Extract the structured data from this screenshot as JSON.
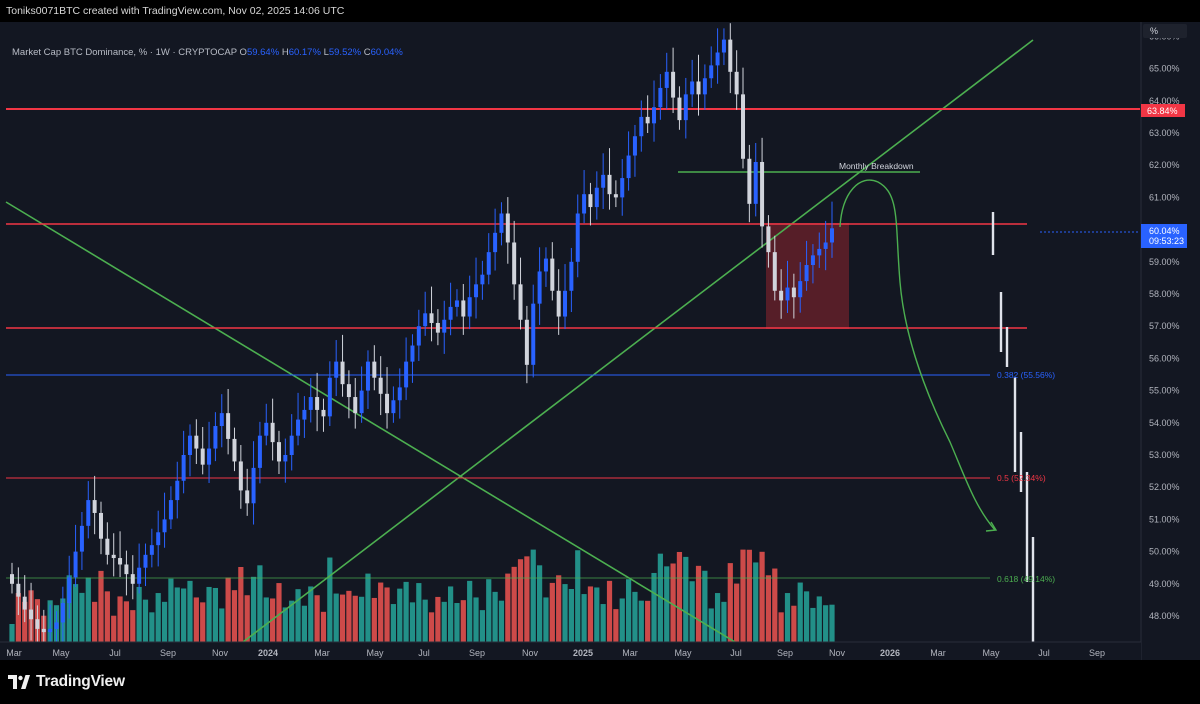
{
  "header": {
    "creator_line": "Toniks0071BTC created with TradingView.com, Nov 02, 2025 14:06 UTC"
  },
  "legend": {
    "title": "Market Cap BTC Dominance, % · 1W · CRYPTOCAP",
    "o_label": "O",
    "o_value": "59.64%",
    "h_label": "H",
    "h_value": "60.17%",
    "l_label": "L",
    "l_value": "59.52%",
    "c_label": "C",
    "c_value": "60.04%"
  },
  "price_scale": {
    "unit_button": "%",
    "ticks": [
      "48.00%",
      "49.00%",
      "50.00%",
      "51.00%",
      "52.00%",
      "53.00%",
      "54.00%",
      "55.00%",
      "56.00%",
      "57.00%",
      "58.00%",
      "59.00%",
      "60.00%",
      "61.00%",
      "62.00%",
      "63.00%",
      "64.00%",
      "65.00%",
      "66.00%"
    ],
    "price_tag": "63.84%",
    "last_price": "60.04%",
    "countdown": "09:53:23"
  },
  "time_axis": {
    "labels": [
      "Mar",
      "May",
      "Jul",
      "Sep",
      "Nov",
      "2024",
      "Mar",
      "May",
      "Jul",
      "Sep",
      "Nov",
      "2025",
      "Mar",
      "May",
      "Jul",
      "Sep",
      "Nov",
      "2026",
      "Mar",
      "May",
      "Jul",
      "Sep"
    ]
  },
  "annotations": {
    "monthly_breakdown": "Monthly Breakdown",
    "fib_0382": "0.382 (55.56%)",
    "fib_05": "0.5 (52.34%)",
    "fib_0618": "0.618 (49.14%)"
  },
  "brand": {
    "name": "TradingView"
  },
  "colors": {
    "background": "#131722",
    "bull": "#2962ff",
    "bear": "#d1d4dc",
    "vol_up": "#26a69a",
    "vol_down": "#ef5350",
    "trendline": "#4caf50",
    "resistance": "#f23645",
    "fib_0382": "#2962ff",
    "fib_05": "#f23645",
    "fib_0618": "#4caf50",
    "breakdown_zone": "#b22833"
  },
  "chart_data": {
    "type": "candlestick",
    "title": "Market Cap BTC Dominance, % · 1W · CRYPTOCAP",
    "ylabel": "%",
    "ylim": [
      47.2,
      66.3
    ],
    "x_start": "2023-03",
    "x_end": "2026-09",
    "horizontal_levels": [
      63.84,
      60.25,
      57.02
    ],
    "fib_levels": [
      {
        "level": "0.382",
        "value": 55.56
      },
      {
        "level": "0.5",
        "value": 52.34
      },
      {
        "level": "0.618",
        "value": 49.14
      }
    ],
    "monthly_breakdown_level": 61.93,
    "last_close": 60.04,
    "closes": [
      49.0,
      48.6,
      48.2,
      47.9,
      47.6,
      47.5,
      47.6,
      47.8,
      48.4,
      49.2,
      50.0,
      50.8,
      51.6,
      51.2,
      50.4,
      49.9,
      49.8,
      49.6,
      49.3,
      49.0,
      49.5,
      49.9,
      50.2,
      50.6,
      51.0,
      51.6,
      52.2,
      53.0,
      53.6,
      53.2,
      52.7,
      53.2,
      53.9,
      54.3,
      53.5,
      52.8,
      51.9,
      51.5,
      52.6,
      53.6,
      54.0,
      53.4,
      52.8,
      53.0,
      53.6,
      54.1,
      54.4,
      54.8,
      54.4,
      54.2,
      55.4,
      55.9,
      55.2,
      54.8,
      54.3,
      55.0,
      55.9,
      55.4,
      54.9,
      54.3,
      54.7,
      55.1,
      55.9,
      56.4,
      57.0,
      57.4,
      57.1,
      56.8,
      57.2,
      57.6,
      57.8,
      57.3,
      57.9,
      58.3,
      58.6,
      59.3,
      59.9,
      60.5,
      59.6,
      58.3,
      57.2,
      55.8,
      57.7,
      58.7,
      59.1,
      58.1,
      57.3,
      58.1,
      59.0,
      60.5,
      61.1,
      60.7,
      61.3,
      61.7,
      61.1,
      61.0,
      61.6,
      62.3,
      62.9,
      63.5,
      63.3,
      63.8,
      64.4,
      64.9,
      64.1,
      63.4,
      64.2,
      64.6,
      64.2,
      64.7,
      65.1,
      65.5,
      65.9,
      64.9,
      64.2,
      62.2,
      60.8,
      62.1,
      60.1,
      59.3,
      58.1,
      57.8,
      58.2,
      57.9,
      58.4,
      58.9,
      59.2,
      59.4,
      59.6,
      60.04
    ]
  }
}
